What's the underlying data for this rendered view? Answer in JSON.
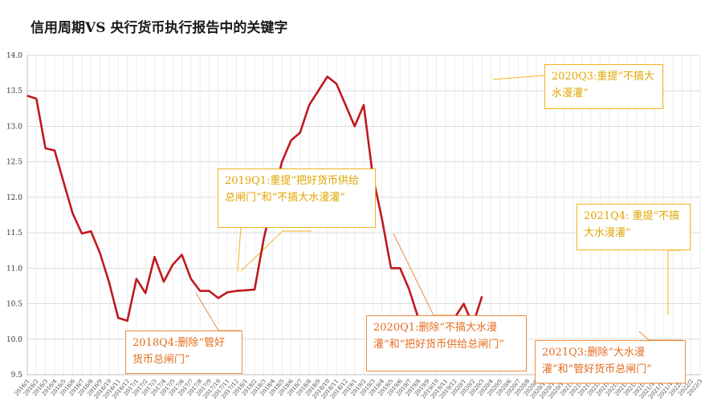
{
  "chart_data": {
    "type": "line",
    "title": "信用周期VS 央行货币执行报告中的关键字",
    "ylim": [
      9.5,
      14.0
    ],
    "yticks": [
      "9.5",
      "10.0",
      "10.5",
      "11.0",
      "11.5",
      "12.0",
      "12.5",
      "13.0",
      "13.5",
      "14.0"
    ],
    "grid": true,
    "legend": "none",
    "line_color": "#c0191f",
    "x": [
      "2016/1",
      "2016/2",
      "2016/3",
      "2016/4",
      "2016/5",
      "2016/6",
      "2016/7",
      "2016/8",
      "2016/9",
      "2016/10",
      "2016/11",
      "2016/12",
      "2017/1",
      "2017/2",
      "2017/3",
      "2017/4",
      "2017/5",
      "2017/6",
      "2017/7",
      "2017/8",
      "2017/9",
      "2017/10",
      "2017/11",
      "2017/12",
      "2018/1",
      "2018/2",
      "2018/3",
      "2018/4",
      "2018/5",
      "2018/6",
      "2018/7",
      "2018/8",
      "2018/9",
      "2018/10",
      "2018/11",
      "2018/12",
      "2019/1",
      "2019/2",
      "2019/3",
      "2019/4",
      "2019/5",
      "2019/6",
      "2019/7",
      "2019/8",
      "2019/9",
      "2019/10",
      "2019/11",
      "2019/12",
      "2020/1",
      "2020/2",
      "2020/3",
      "2020/4",
      "2020/5",
      "2020/6",
      "2020/7",
      "2020/8",
      "2020/9",
      "2020/10",
      "2020/11",
      "2020/12",
      "2021/1",
      "2021/2",
      "2021/3",
      "2021/4",
      "2021/5",
      "2021/6",
      "2021/7",
      "2021/8",
      "2021/9",
      "2021/10",
      "2021/11",
      "2021/12",
      "2022/1",
      "2022/2",
      "2022/3"
    ],
    "x_tick_labels": [
      "2016/1",
      "2016/2",
      "2016/3",
      "2016/4",
      "2016/5",
      "2016/6",
      "2016/7",
      "2016/8",
      "2016/9",
      "2016/10",
      "2016/11",
      "2016/12",
      "2017/1",
      "2017/2",
      "2017/3",
      "2017/4",
      "2017/5",
      "2017/6",
      "2017/7",
      "2017/8",
      "2017/9",
      "2017/10",
      "2017/11",
      "2017/12",
      "2018/1",
      "2018/2",
      "2018/3",
      "2018/4",
      "2018/5",
      "2018/6",
      "2018/7",
      "2018/8",
      "2018/9",
      "2018/10",
      "2018/11",
      "2018/12",
      "2019/1",
      "2019/2",
      "2019/3",
      "2019/4",
      "2019/5",
      "2019/6",
      "2019/7",
      "2019/8",
      "2019/9",
      "2019/10",
      "2019/11",
      "2019/12",
      "2020/1",
      "2020/2",
      "2020/3",
      "2020/4",
      "2020/5",
      "2020/6",
      "2020/7",
      "2020/8",
      "2020/9",
      "2020/10",
      "2020/11",
      "2020/12",
      "2021/1",
      "2021/2",
      "2021/3",
      "2021/4",
      "2021/5",
      "2021/6",
      "2021/7",
      "2021/8",
      "2021/9",
      "2021/10",
      "2021/11",
      "2021/12",
      "2022/1",
      "2022/2",
      "2022/3"
    ],
    "points": [
      [
        0,
        13.43
      ],
      [
        1,
        13.39
      ],
      [
        2,
        12.69
      ],
      [
        3,
        12.66
      ],
      [
        4,
        12.21
      ],
      [
        5,
        11.77
      ],
      [
        6,
        11.49
      ],
      [
        7,
        11.52
      ],
      [
        8,
        11.21
      ],
      [
        9,
        10.8
      ],
      [
        10,
        10.3
      ],
      [
        11,
        10.26
      ],
      [
        12,
        10.85
      ],
      [
        13,
        10.65
      ],
      [
        14,
        11.16
      ],
      [
        15,
        10.81
      ],
      [
        16,
        11.05
      ],
      [
        17,
        11.19
      ],
      [
        18,
        10.85
      ],
      [
        19,
        10.68
      ],
      [
        20,
        10.68
      ],
      [
        21,
        10.58
      ],
      [
        22,
        10.66
      ],
      [
        23,
        10.68
      ],
      [
        24,
        10.69
      ],
      [
        25,
        10.7
      ],
      [
        26,
        11.41
      ],
      [
        27,
        11.97
      ],
      [
        28,
        12.5
      ],
      [
        29,
        12.8
      ],
      [
        30,
        12.91
      ],
      [
        31,
        13.3
      ],
      [
        32,
        13.5
      ],
      [
        33,
        13.7
      ],
      [
        34,
        13.6
      ],
      [
        35,
        13.3
      ],
      [
        36,
        13.0
      ],
      [
        37,
        13.3
      ],
      [
        38,
        12.3
      ],
      [
        39,
        11.7
      ],
      [
        40,
        11.0
      ],
      [
        41,
        11.0
      ],
      [
        42,
        10.7
      ],
      [
        43,
        10.3
      ],
      [
        44,
        10.0
      ],
      [
        45,
        10.0
      ],
      [
        46,
        10.1
      ],
      [
        47,
        10.3
      ],
      [
        48,
        10.5
      ],
      [
        49,
        10.2
      ],
      [
        50,
        10.6
      ]
    ],
    "annotations": [
      {
        "id": "ann-2018q4",
        "text": "2018Q4:删除“管好货币总闸门”",
        "color": "orange"
      },
      {
        "id": "ann-2019q1",
        "text": "2019Q1:重提“把好货币供给总闸门”和“不搞大水漫灌”",
        "color": "yellow"
      },
      {
        "id": "ann-2020q1",
        "text": "2020Q1:删除“不搞大水漫灌”和“把好货币供给总闸门”",
        "color": "orange"
      },
      {
        "id": "ann-2020q3",
        "text": "2020Q3:重提“不搞大水漫灌”",
        "color": "yellow"
      },
      {
        "id": "ann-2021q3",
        "text": "2021Q3:删除“大水漫灌”和“管好货币总闸门”",
        "color": "orange"
      },
      {
        "id": "ann-2021q4",
        "text": "2021Q4: 重提“不搞大水漫灌”",
        "color": "yellow"
      }
    ]
  }
}
